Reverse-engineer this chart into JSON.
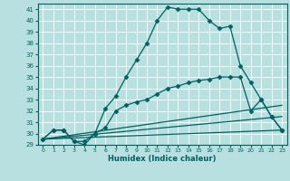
{
  "xlabel": "Humidex (Indice chaleur)",
  "bg_color": "#b8e0e0",
  "grid_color": "#ffffff",
  "line_color": "#006060",
  "xlim": [
    -0.5,
    23.5
  ],
  "ylim": [
    29,
    41.5
  ],
  "xticks": [
    0,
    1,
    2,
    3,
    4,
    5,
    6,
    7,
    8,
    9,
    10,
    11,
    12,
    13,
    14,
    15,
    16,
    17,
    18,
    19,
    20,
    21,
    22,
    23
  ],
  "yticks": [
    29,
    30,
    31,
    32,
    33,
    34,
    35,
    36,
    37,
    38,
    39,
    40,
    41
  ],
  "series": [
    {
      "x": [
        0,
        1,
        2,
        3,
        4,
        5,
        6,
        7,
        8,
        9,
        10,
        11,
        12,
        13,
        14,
        15,
        16,
        17,
        18,
        19,
        20,
        21,
        22,
        23
      ],
      "y": [
        29.5,
        30.3,
        30.3,
        29.3,
        29.0,
        30.0,
        32.2,
        33.3,
        35.0,
        36.5,
        38.0,
        40.0,
        41.2,
        41.0,
        41.0,
        41.0,
        40.0,
        39.3,
        39.5,
        36.0,
        34.5,
        33.0,
        31.5,
        30.3
      ],
      "marker": "D",
      "markersize": 2.5,
      "linewidth": 0.9
    },
    {
      "x": [
        0,
        1,
        2,
        3,
        4,
        5,
        6,
        7,
        8,
        9,
        10,
        11,
        12,
        13,
        14,
        15,
        16,
        17,
        18,
        19,
        20,
        21,
        22,
        23
      ],
      "y": [
        29.5,
        30.3,
        30.3,
        29.3,
        29.3,
        30.0,
        30.5,
        32.0,
        32.5,
        32.8,
        33.0,
        33.5,
        34.0,
        34.2,
        34.5,
        34.7,
        34.8,
        35.0,
        35.0,
        35.0,
        32.0,
        33.0,
        31.5,
        30.3
      ],
      "marker": "D",
      "markersize": 2.5,
      "linewidth": 0.9
    },
    {
      "x": [
        0,
        23
      ],
      "y": [
        29.5,
        32.5
      ],
      "marker": null,
      "markersize": 0,
      "linewidth": 0.9
    },
    {
      "x": [
        0,
        23
      ],
      "y": [
        29.5,
        31.5
      ],
      "marker": null,
      "markersize": 0,
      "linewidth": 0.9
    },
    {
      "x": [
        0,
        23
      ],
      "y": [
        29.5,
        30.3
      ],
      "marker": null,
      "markersize": 0,
      "linewidth": 0.9
    }
  ]
}
